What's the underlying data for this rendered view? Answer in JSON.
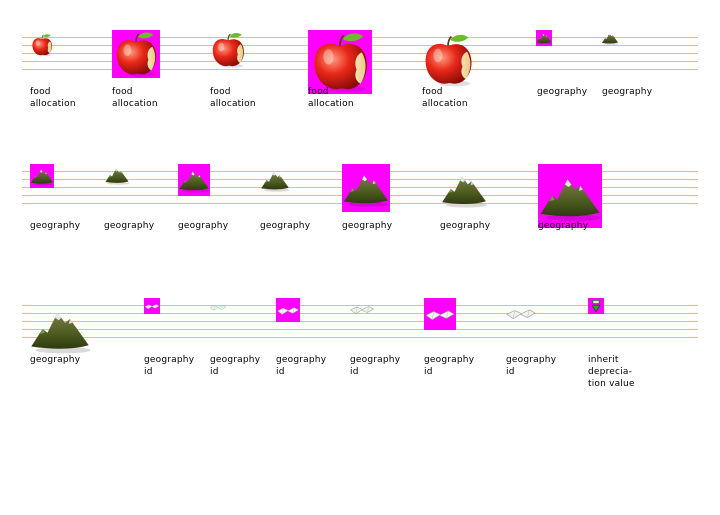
{
  "colors": {
    "magenta_bg": "#ff00ff",
    "rule_line": "#f0b49c"
  },
  "rows": [
    {
      "cells": [
        {
          "icon": "apple-icon",
          "bg": false,
          "label": [
            "food",
            "allocation"
          ]
        },
        {
          "icon": "apple-icon",
          "bg": true,
          "label": [
            "food",
            "allocation"
          ]
        },
        {
          "icon": "apple-icon",
          "bg": false,
          "label": [
            "food",
            "allocation"
          ]
        },
        {
          "icon": "apple-icon",
          "bg": true,
          "label": [
            "food",
            "allocation"
          ]
        },
        {
          "icon": "apple-icon",
          "bg": false,
          "label": [
            "food",
            "allocation"
          ]
        },
        {
          "icon": "mountain-icon",
          "bg": true,
          "label": [
            "geography"
          ]
        },
        {
          "icon": "mountain-icon",
          "bg": false,
          "label": [
            "geography"
          ]
        }
      ]
    },
    {
      "cells": [
        {
          "icon": "mountain-icon",
          "bg": true,
          "label": [
            "geography"
          ]
        },
        {
          "icon": "mountain-icon",
          "bg": false,
          "label": [
            "geography"
          ]
        },
        {
          "icon": "mountain-icon",
          "bg": true,
          "label": [
            "geography"
          ]
        },
        {
          "icon": "mountain-icon",
          "bg": false,
          "label": [
            "geography"
          ]
        },
        {
          "icon": "mountain-icon",
          "bg": true,
          "label": [
            "geography"
          ]
        },
        {
          "icon": "mountain-icon",
          "bg": false,
          "label": [
            "geography"
          ]
        },
        {
          "icon": "mountain-icon",
          "bg": true,
          "label": [
            "geography"
          ]
        }
      ]
    },
    {
      "cells": [
        {
          "icon": "mountain-icon",
          "bg": false,
          "label": [
            "geography"
          ]
        },
        {
          "icon": "map-icon",
          "bg": true,
          "label": [
            "geography",
            "id"
          ]
        },
        {
          "icon": "map-icon",
          "bg": false,
          "label": [
            "geography",
            "id"
          ]
        },
        {
          "icon": "map-icon",
          "bg": true,
          "label": [
            "geography",
            "id"
          ]
        },
        {
          "icon": "map-icon",
          "bg": false,
          "label": [
            "geography",
            "id"
          ]
        },
        {
          "icon": "map-icon",
          "bg": true,
          "label": [
            "geography",
            "id"
          ]
        },
        {
          "icon": "map-icon",
          "bg": false,
          "label": [
            "geography",
            "id"
          ]
        },
        {
          "icon": "inherit-arrow-icon",
          "bg": true,
          "label": [
            "inherit",
            "deprecia-",
            "tion value"
          ]
        }
      ]
    }
  ]
}
